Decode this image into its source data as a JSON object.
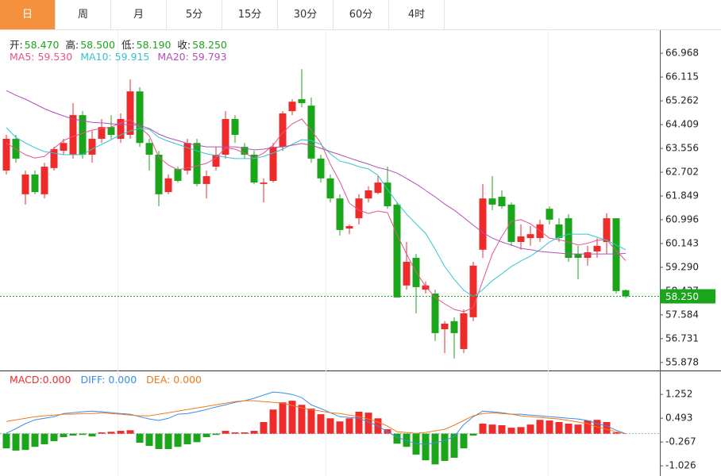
{
  "tabs": [
    "日",
    "周",
    "月",
    "5分",
    "15分",
    "30分",
    "60分",
    "4时"
  ],
  "active_tab": 0,
  "chart_data": [
    {
      "type": "candlestick",
      "readouts": [
        {
          "label": "开:",
          "value": "58.470"
        },
        {
          "label": "高:",
          "value": "58.500"
        },
        {
          "label": "低:",
          "value": "58.190"
        },
        {
          "label": "收:",
          "value": "58.250"
        }
      ],
      "up_color": "#ee2b2b",
      "down_color": "#1ba51b",
      "open": [
        62.76,
        63.9,
        61.91,
        62.62,
        61.91,
        62.85,
        63.47,
        63.33,
        64.75,
        63.33,
        63.9,
        64.32,
        63.9,
        64.04,
        65.6,
        63.75,
        63.33,
        61.99,
        62.82,
        62.76,
        63.75,
        62.28,
        62.9,
        63.33,
        64.61,
        63.61,
        63.33,
        62.28,
        62.39,
        63.61,
        64.89,
        65.32,
        65.09,
        63.19,
        62.48,
        61.76,
        60.68,
        61.05,
        61.76,
        61.96,
        62.33,
        61.54,
        58.64,
        59.63,
        58.49,
        58.35,
        57.07,
        57.36,
        56.36,
        57.5,
        59.92,
        61.76,
        61.82,
        61.54,
        60.2,
        60.34,
        60.34,
        61.39,
        60.83,
        61.05,
        59.77,
        59.63,
        59.86,
        60.2,
        61.05,
        58.47
      ],
      "high": [
        64.04,
        64.04,
        62.76,
        62.76,
        63.04,
        63.61,
        63.9,
        65.18,
        64.89,
        64.18,
        64.61,
        64.75,
        64.81,
        66.03,
        65.75,
        63.9,
        63.47,
        62.62,
        62.9,
        63.9,
        63.9,
        62.76,
        63.61,
        64.89,
        64.75,
        63.75,
        63.47,
        62.48,
        63.75,
        64.89,
        65.32,
        66.4,
        65.38,
        63.33,
        62.62,
        61.91,
        60.83,
        61.91,
        62.19,
        62.56,
        62.9,
        61.62,
        60.2,
        59.77,
        58.78,
        58.49,
        57.36,
        57.5,
        57.78,
        59.49,
        62.28,
        62.56,
        62.05,
        61.62,
        60.83,
        60.77,
        61.0,
        61.48,
        61.05,
        61.2,
        60.06,
        60.06,
        60.34,
        61.23,
        61.05,
        58.5
      ],
      "low": [
        62.62,
        63.04,
        61.54,
        61.91,
        61.76,
        62.76,
        63.33,
        63.19,
        63.19,
        63.04,
        63.75,
        63.9,
        63.75,
        63.9,
        63.61,
        62.76,
        61.48,
        61.91,
        62.33,
        62.62,
        62.19,
        61.76,
        62.76,
        63.19,
        63.75,
        63.19,
        62.28,
        61.62,
        62.33,
        63.47,
        64.75,
        65.03,
        63.04,
        62.33,
        61.62,
        60.43,
        60.48,
        60.83,
        61.62,
        61.91,
        61.39,
        58.21,
        58.49,
        57.64,
        58.35,
        56.65,
        56.22,
        56.02,
        56.22,
        57.36,
        59.63,
        61.34,
        61.39,
        60.06,
        59.92,
        60.06,
        60.2,
        60.83,
        60.2,
        59.49,
        58.86,
        59.35,
        59.63,
        59.77,
        58.35,
        58.19
      ],
      "close": [
        63.9,
        63.19,
        62.62,
        61.99,
        62.9,
        63.53,
        63.75,
        64.75,
        63.33,
        63.9,
        64.32,
        64.04,
        64.61,
        65.6,
        63.75,
        63.33,
        61.91,
        62.48,
        62.39,
        63.75,
        62.28,
        62.56,
        63.33,
        64.61,
        64.04,
        63.33,
        62.33,
        62.33,
        63.61,
        64.81,
        65.23,
        65.18,
        63.19,
        62.48,
        61.76,
        60.63,
        60.77,
        61.76,
        62.05,
        62.33,
        61.48,
        58.21,
        59.49,
        58.58,
        58.64,
        56.93,
        57.27,
        56.93,
        57.64,
        59.35,
        61.76,
        61.54,
        61.48,
        60.2,
        60.4,
        60.48,
        60.83,
        61.0,
        60.34,
        59.63,
        59.63,
        59.83,
        60.06,
        61.05,
        58.44,
        58.25
      ],
      "series": [
        {
          "name": "MA5: 59.530",
          "color": "#e8528c",
          "values": [
            63.75,
            63.53,
            63.33,
            63.21,
            63.27,
            63.56,
            63.84,
            63.98,
            64.1,
            64.21,
            64.27,
            64.32,
            64.47,
            64.58,
            64.32,
            64.01,
            63.24,
            62.96,
            62.79,
            62.85,
            62.93,
            63.02,
            63.21,
            63.58,
            63.53,
            63.39,
            63.21,
            63.39,
            63.67,
            64.12,
            64.44,
            64.61,
            64.21,
            63.75,
            62.99,
            62.36,
            61.59,
            61.34,
            61.22,
            61.31,
            61.25,
            60.46,
            59.77,
            59.12,
            58.61,
            58.21,
            57.98,
            57.78,
            57.7,
            57.84,
            58.81,
            59.77,
            60.4,
            60.94,
            61.0,
            60.85,
            60.6,
            60.34,
            60.28,
            60.2,
            60.09,
            60.15,
            60.26,
            60.28,
            59.89,
            59.53
          ]
        },
        {
          "name": "MA10: 59.915",
          "color": "#35c3d3",
          "values": [
            64.3,
            63.95,
            63.75,
            63.58,
            63.44,
            63.39,
            63.33,
            63.33,
            63.33,
            63.53,
            63.7,
            63.87,
            64.04,
            64.18,
            64.27,
            64.24,
            63.95,
            63.81,
            63.7,
            63.58,
            63.47,
            63.36,
            63.3,
            63.24,
            63.19,
            63.19,
            63.19,
            63.27,
            63.39,
            63.53,
            63.7,
            63.87,
            63.84,
            63.7,
            63.36,
            63.1,
            63.02,
            62.9,
            62.82,
            62.59,
            62.08,
            61.62,
            61.2,
            60.85,
            60.51,
            59.94,
            59.32,
            58.86,
            58.47,
            58.24,
            58.49,
            58.81,
            59.06,
            59.32,
            59.52,
            59.69,
            59.92,
            60.2,
            60.37,
            60.48,
            60.48,
            60.48,
            60.37,
            60.26,
            60.09,
            59.92
          ]
        },
        {
          "name": "MA20: 59.793",
          "color": "#b050b8",
          "values": [
            65.63,
            65.46,
            65.32,
            65.15,
            64.98,
            64.84,
            64.72,
            64.61,
            64.55,
            64.49,
            64.47,
            64.44,
            64.41,
            64.41,
            64.38,
            64.27,
            64.07,
            63.93,
            63.84,
            63.73,
            63.67,
            63.61,
            63.61,
            63.61,
            63.61,
            63.56,
            63.5,
            63.53,
            63.59,
            63.61,
            63.67,
            63.73,
            63.67,
            63.56,
            63.44,
            63.33,
            63.21,
            63.1,
            62.99,
            62.87,
            62.79,
            62.67,
            62.48,
            62.28,
            62.05,
            61.82,
            61.56,
            61.34,
            61.08,
            60.8,
            60.54,
            60.34,
            60.2,
            60.09,
            59.97,
            59.92,
            59.86,
            59.83,
            59.8,
            59.77,
            59.77,
            59.77,
            59.77,
            59.77,
            59.77,
            59.79
          ]
        }
      ],
      "last_price": {
        "value": 58.25,
        "label": "58.250"
      },
      "last_color": "#1ba51b",
      "ylim": [
        55.59,
        67.74
      ],
      "yticks": [
        66.968,
        66.115,
        65.262,
        64.409,
        63.556,
        62.702,
        61.849,
        60.996,
        60.143,
        {
          "value": 59.29,
          "label": "59.290"
        },
        58.437,
        57.584,
        56.731,
        55.878
      ]
    },
    {
      "type": "macd",
      "series": [
        {
          "name": "MACD:0.000",
          "kind": "histogram",
          "color": "#ee2b2b",
          "down_color": "#1ba51b",
          "values": [
            -0.47,
            -0.54,
            -0.52,
            -0.42,
            -0.34,
            -0.24,
            -0.11,
            -0.06,
            -0.04,
            -0.09,
            0.04,
            0.06,
            0.09,
            0.11,
            -0.29,
            -0.39,
            -0.49,
            -0.49,
            -0.42,
            -0.34,
            -0.27,
            -0.11,
            -0.04,
            0.09,
            0.04,
            0.04,
            0.09,
            0.37,
            0.77,
            1.0,
            1.05,
            0.92,
            0.8,
            0.62,
            0.49,
            0.39,
            0.49,
            0.7,
            0.67,
            0.49,
            0.14,
            -0.32,
            -0.42,
            -0.67,
            -0.85,
            -0.98,
            -0.87,
            -0.77,
            -0.47,
            -0.06,
            0.32,
            0.29,
            0.27,
            0.19,
            0.21,
            0.29,
            0.44,
            0.42,
            0.37,
            0.32,
            0.29,
            0.42,
            0.44,
            0.37,
            0.04,
            0
          ]
        },
        {
          "name": "DIFF: 0.000",
          "kind": "line",
          "color": "#3a8ee6",
          "values": [
            0.01,
            0.16,
            0.32,
            0.44,
            0.49,
            0.54,
            0.64,
            0.67,
            0.7,
            0.72,
            0.7,
            0.67,
            0.64,
            0.62,
            0.54,
            0.47,
            0.42,
            0.49,
            0.62,
            0.64,
            0.7,
            0.77,
            0.85,
            0.92,
            1.0,
            1.05,
            1.13,
            1.23,
            1.33,
            1.3,
            1.25,
            1.15,
            0.92,
            0.8,
            0.67,
            0.54,
            0.52,
            0.49,
            0.37,
            0.24,
            0.06,
            -0.11,
            -0.22,
            -0.32,
            -0.34,
            -0.29,
            -0.22,
            -0.09,
            0.29,
            0.54,
            0.72,
            0.7,
            0.67,
            0.62,
            0.62,
            0.59,
            0.57,
            0.54,
            0.52,
            0.49,
            0.47,
            0.42,
            0.32,
            0.24,
            0.11,
            0
          ]
        },
        {
          "name": "DEA: 0.000",
          "kind": "line",
          "color": "#f07a1a",
          "values": [
            0.39,
            0.44,
            0.49,
            0.54,
            0.57,
            0.59,
            0.62,
            0.62,
            0.64,
            0.64,
            0.67,
            0.64,
            0.62,
            0.59,
            0.57,
            0.57,
            0.62,
            0.67,
            0.72,
            0.77,
            0.82,
            0.87,
            0.92,
            0.97,
            1.02,
            1.05,
            1.05,
            1.02,
            1.0,
            0.97,
            0.9,
            0.82,
            0.77,
            0.72,
            0.67,
            0.64,
            0.59,
            0.54,
            0.47,
            0.37,
            0.24,
            0.06,
            0.04,
            0.01,
            0.04,
            0.09,
            0.14,
            0.27,
            0.42,
            0.57,
            0.64,
            0.67,
            0.64,
            0.62,
            0.57,
            0.54,
            0.52,
            0.49,
            0.47,
            0.42,
            0.37,
            0.32,
            0.21,
            0.14,
            0.06,
            0
          ]
        }
      ],
      "ylim": [
        -1.3,
        1.99
      ],
      "yticks": [
        1.252,
        0.493,
        -0.267,
        -1.026
      ]
    }
  ]
}
